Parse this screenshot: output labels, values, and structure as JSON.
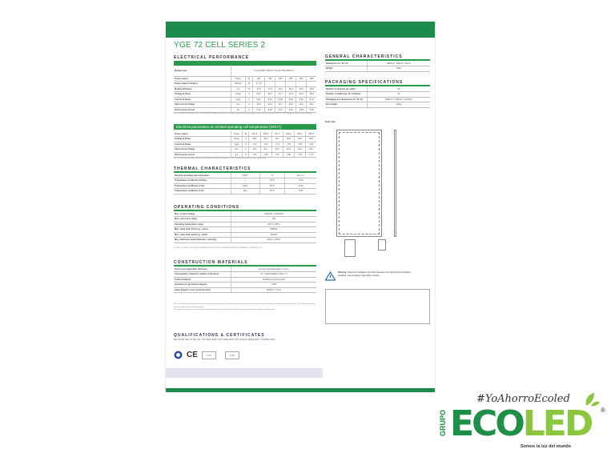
{
  "title": "YGE 72 CELL SERIES 2",
  "electrical": {
    "heading": "ELECTRICAL PERFORMANCE",
    "module_type_label": "Module type",
    "module_type_value": "YLxxxP-35b (1000 V)\nYLxxxP-35b (1500 V)",
    "rows": [
      [
        "Power output",
        "Pmax",
        "W",
        "340",
        "345",
        "350",
        "355",
        "360",
        "365"
      ],
      [
        "Power output tolerance",
        "ΔPmax",
        "W",
        "0 / +5",
        "",
        "",
        "",
        "",
        ""
      ],
      [
        "Module efficiency",
        "ηm",
        "%",
        "17.5",
        "17.8",
        "18.0",
        "18.3",
        "18.5",
        "18.8"
      ],
      [
        "Voltage at Pmax",
        "Vmpp",
        "V",
        "38.3",
        "38.1",
        "37.7",
        "37.5",
        "36.9",
        "38.3"
      ],
      [
        "Current at Pmax",
        "Impp",
        "A",
        "8.91",
        "8.93",
        "8.99",
        "8.46",
        "8.42",
        "8.76"
      ],
      [
        "Open-circuit voltage",
        "Voc",
        "V",
        "46.0",
        "45.9",
        "45.7",
        "45.6",
        "45.4",
        "45.2"
      ],
      [
        "Short-circuit current",
        "Isc",
        "A",
        "9.20",
        "9.40",
        "9.37",
        "9.35",
        "9.39",
        "9.25"
      ]
    ],
    "note": "STC: 1000W/m² irradiance, 25°C cell temperature, AM1.5g spectrum according to EN 60904-3. Average relative efficiency reduction of 3.3% at 200W/m² according to EN 60904-1."
  },
  "noct": {
    "heading": "Electrical parameters at nominal operating cell temperature (NOCT)",
    "rows": [
      [
        "Power output",
        "Pmax",
        "W",
        "251.6",
        "255.6",
        "247.3",
        "262.6",
        "259.7",
        "256.0"
      ],
      [
        "Voltage at Pmax",
        "Vmpp",
        "V",
        "35.0",
        "35.3",
        "34.7",
        "36.8",
        "36.0",
        "35.6"
      ],
      [
        "Current at Pmax",
        "Impp",
        "A",
        "7.19",
        "7.24",
        "7.13",
        "7.06",
        "7.06",
        "7.02"
      ],
      [
        "Open-circuit voltage",
        "Voc",
        "V",
        "42.9",
        "42.7",
        "42.5",
        "42.9",
        "42.2",
        "42.1"
      ],
      [
        "Short-circuit current",
        "Isc",
        "A",
        "7.84",
        "7.60",
        "7.57",
        "7.58",
        "7.51",
        "7.47"
      ]
    ],
    "note": "NOCT: open-circuit module operation temperature at 800W/m² irradiance, 20°C ambient temperature, 1m/s wind speed."
  },
  "thermal": {
    "heading": "THERMAL CHARACTERISTICS",
    "rows": [
      [
        "Nominal operating cell temperature",
        "NOCT",
        "°C",
        "46 +/- 2"
      ],
      [
        "Temperature coefficient of Pmax",
        "γ",
        "%/°C",
        "-0.39"
      ],
      [
        "Temperature coefficient of Voc",
        "βVoc",
        "%/°C",
        "-0.30"
      ],
      [
        "Temperature coefficient of Isc",
        "αIsc",
        "%/°C",
        "0.05"
      ]
    ]
  },
  "operating": {
    "heading": "OPERATING CONDITIONS",
    "rows": [
      [
        "Max. system voltage",
        "1000VDC / 1500VDC"
      ],
      [
        "Max. series fuse rating",
        "15A"
      ],
      [
        "Operating temperature range",
        "-40°C to 85°C"
      ],
      [
        "Max. static load, front (e.g., snow)",
        "5400Pa"
      ],
      [
        "Max. static load, back (e.g., wind)",
        "2400Pa"
      ],
      [
        "Max. hailstone impact (diameter / velocity)",
        "25mm / 23m/s"
      ]
    ],
    "note": "DO NOT CONNECT FUSE IN COMBINER BOX WITH TWO OR MORE STRINGS IN PARALLEL CONNECTION"
  },
  "construction": {
    "heading": "CONSTRUCTION MATERIALS",
    "rows": [
      [
        "Front cover (material) / thickness",
        "low-iron tempered glass / 3.2mm"
      ],
      [
        "Cell (quantity / material / number of busbars)",
        "72 / multicrystalline silicon / 5"
      ],
      [
        "Frame (material)",
        "anodized aluminum alloy"
      ],
      [
        "Junction box (protection degree)",
        "≥ IP67"
      ],
      [
        "Cable (length / cross-sectional area)",
        "1100mm / 4mm²"
      ]
    ],
    "notes": [
      "Due to continuous innovation, research and product improvement, the specifications in this product information sheet are subject to change without prior notice. The specifications may deviate slightly and are not guaranteed.",
      "The data do not refer to a single module and they are not part of the offer, they only serve for comparison to different module types."
    ]
  },
  "general": {
    "heading": "GENERAL CHARACTERISTICS",
    "rows": [
      [
        "Dimensions (L / W / H)",
        "1960mm / 992mm / 40mm"
      ],
      [
        "Weight",
        "22kg"
      ]
    ]
  },
  "packaging": {
    "heading": "PACKAGING SPECIFICATIONS",
    "rows": [
      [
        "Number of modules per pallet",
        "26"
      ],
      [
        "Number of pallets per 40' container",
        "24"
      ],
      [
        "Packaging box dimensions (L / W / H)",
        "1990mm / 1160mm / 1175mm"
      ],
      [
        "Box weight",
        "616kg"
      ]
    ],
    "unit": "Unit: mm"
  },
  "warning": {
    "title": "Warning :",
    "text": "Read the Installation and User Manual in its entirety before handling, installing, and operating Yingli Solar modules."
  },
  "qualifications": {
    "heading": "QUALIFICATIONS & CERTIFICATES",
    "text": "IEC 61215, IEC 61730, CE, ISO 9001:2015, ISO 14001:2015, BS OHSAS 18001:2007, SA 8000:2014",
    "logos": [
      "seal",
      "CE",
      "TÜV",
      "TÜV"
    ]
  },
  "brand": {
    "hashtag": "#YoAhorroEcoled",
    "grupo": "GRUPO",
    "name_dark": "ECO",
    "name_light": "LED",
    "registered": "®",
    "tagline": "Somos la luz del mundo",
    "colors": {
      "dark": "#1d8f46",
      "light": "#8cc63f"
    }
  }
}
